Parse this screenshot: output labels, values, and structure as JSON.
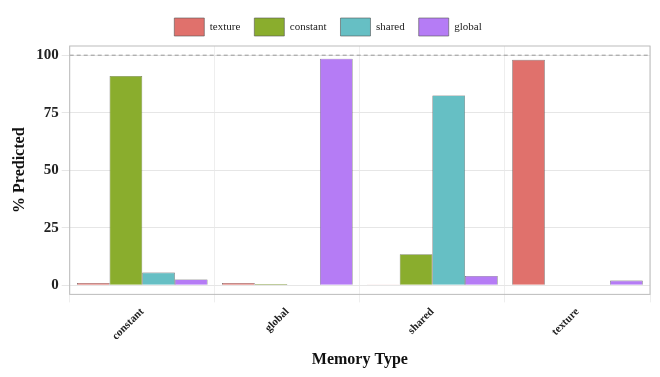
{
  "chart_data": {
    "type": "bar",
    "x_label": "Memory Type",
    "y_label": "% Predicted",
    "categories": [
      "constant",
      "global",
      "shared",
      "texture"
    ],
    "series": [
      {
        "name": "texture",
        "color": "#e0716c",
        "values": [
          1,
          1,
          0.3,
          98
        ]
      },
      {
        "name": "constant",
        "color": "#8aad2d",
        "values": [
          91,
          0.5,
          13.5,
          0
        ]
      },
      {
        "name": "shared",
        "color": "#66bfc4",
        "values": [
          5.5,
          0,
          82.5,
          0
        ]
      },
      {
        "name": "global",
        "color": "#b57cf5",
        "values": [
          2.5,
          98.5,
          4,
          2
        ]
      }
    ],
    "ylim": [
      -4,
      104
    ],
    "yticks": [
      0,
      25,
      50,
      75,
      100
    ],
    "hline": 100,
    "grid": true,
    "legend": "top"
  }
}
